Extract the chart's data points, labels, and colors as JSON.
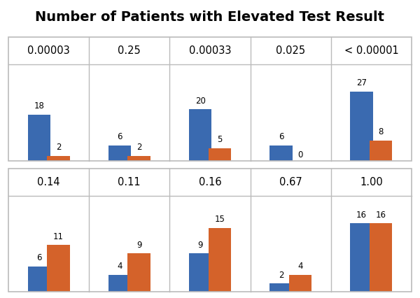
{
  "title": "Number of Patients with Elevated Test Result",
  "title_fontsize": 14,
  "title_fontweight": "bold",
  "row1_labels": [
    "0.00003",
    "0.25",
    "0.00033",
    "0.025",
    "< 0.00001"
  ],
  "row2_labels": [
    "0.14",
    "0.11",
    "0.16",
    "0.67",
    "1.00"
  ],
  "row1_blue": [
    18,
    6,
    20,
    6,
    27
  ],
  "row1_orange": [
    2,
    2,
    5,
    0,
    8
  ],
  "row2_blue": [
    6,
    4,
    9,
    2,
    16
  ],
  "row2_orange": [
    11,
    9,
    15,
    4,
    16
  ],
  "blue_color": "#3A6AB0",
  "orange_color": "#D4622A",
  "bg_color": "#FFFFFF",
  "grid_color": "#BBBBBB",
  "bar_width": 0.28,
  "value_fontsize": 8.5,
  "panel_label_fontsize": 10.5,
  "row1_max": 30,
  "row2_max": 18
}
